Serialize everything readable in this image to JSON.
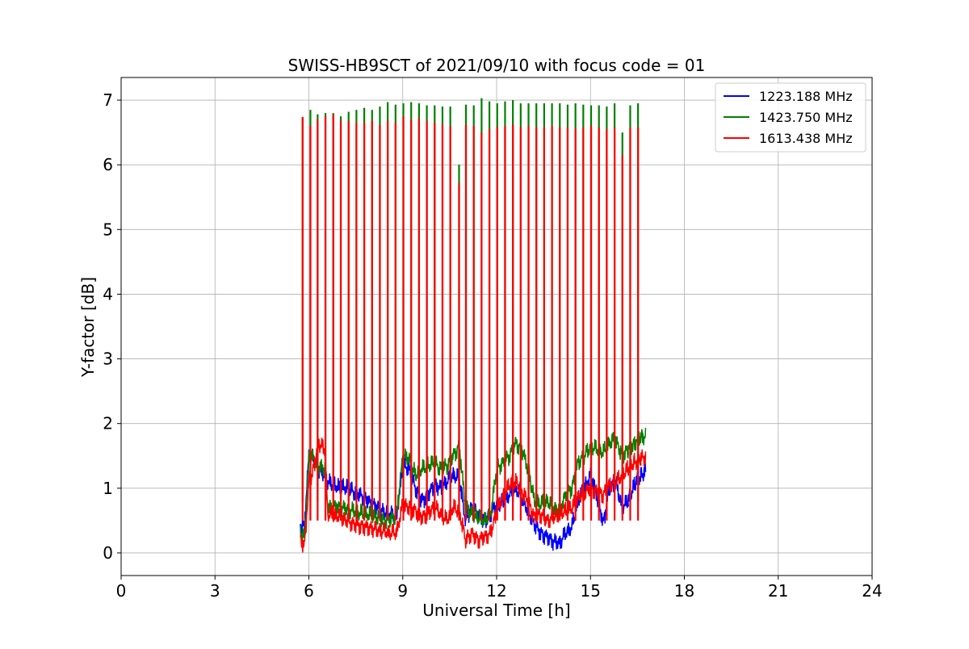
{
  "chart_data": {
    "type": "line",
    "title": "SWISS-HB9SCT of 2021/09/10 with focus code = 01",
    "xlabel": "Universal Time [h]",
    "ylabel": "Y-factor [dB]",
    "xlim": [
      0,
      24
    ],
    "ylim": [
      -0.35,
      7.35
    ],
    "xticks": [
      0,
      3,
      6,
      9,
      12,
      15,
      18,
      21,
      24
    ],
    "xtick_labels": [
      "0",
      "3",
      "6",
      "9",
      "12",
      "15",
      "18",
      "21",
      "24"
    ],
    "yticks": [
      0,
      1,
      2,
      3,
      4,
      5,
      6,
      7
    ],
    "ytick_labels": [
      "0",
      "1",
      "2",
      "3",
      "4",
      "5",
      "6",
      "7"
    ],
    "grid": true,
    "legend_position": "top-right",
    "series": [
      {
        "name": "1223.188 MHz",
        "color": "#0000ff",
        "x": [
          5.73,
          5.85,
          6.0,
          6.1,
          6.3,
          6.5,
          6.6,
          6.8,
          7.0,
          7.2,
          7.4,
          7.6,
          7.8,
          8.0,
          8.2,
          8.4,
          8.6,
          8.8,
          9.0,
          9.2,
          9.4,
          9.6,
          9.8,
          10.0,
          10.2,
          10.4,
          10.6,
          10.8,
          11.0,
          11.2,
          11.4,
          11.6,
          11.8,
          12.0,
          12.2,
          12.4,
          12.6,
          12.8,
          13.0,
          13.2,
          13.4,
          13.6,
          13.8,
          14.0,
          14.2,
          14.4,
          14.6,
          14.8,
          15.0,
          15.2,
          15.4,
          15.6,
          15.8,
          16.0,
          16.2,
          16.4,
          16.6,
          16.75
        ],
        "y": [
          0.45,
          0.4,
          1.55,
          1.5,
          1.3,
          1.2,
          1.1,
          1.05,
          1.0,
          1.02,
          0.95,
          0.9,
          0.85,
          0.75,
          0.7,
          0.62,
          0.6,
          0.58,
          1.35,
          1.3,
          1.0,
          0.8,
          0.9,
          1.05,
          1.0,
          1.1,
          1.2,
          1.15,
          0.5,
          0.7,
          0.6,
          0.5,
          0.6,
          0.75,
          0.8,
          0.9,
          1.0,
          0.85,
          0.65,
          0.45,
          0.3,
          0.25,
          0.18,
          0.15,
          0.3,
          0.4,
          0.8,
          1.0,
          1.2,
          0.9,
          0.45,
          1.0,
          1.1,
          0.7,
          0.8,
          1.05,
          1.2,
          1.25
        ]
      },
      {
        "name": "1423.750 MHz",
        "color": "#008000",
        "x": [
          5.73,
          5.85,
          6.0,
          6.1,
          6.3,
          6.5,
          6.6,
          6.8,
          7.0,
          7.2,
          7.4,
          7.6,
          7.8,
          8.0,
          8.2,
          8.4,
          8.6,
          8.8,
          9.0,
          9.2,
          9.4,
          9.6,
          9.8,
          10.0,
          10.2,
          10.4,
          10.6,
          10.8,
          11.0,
          11.2,
          11.4,
          11.6,
          11.8,
          12.0,
          12.2,
          12.4,
          12.6,
          12.8,
          13.0,
          13.2,
          13.4,
          13.6,
          13.8,
          14.0,
          14.2,
          14.4,
          14.6,
          14.8,
          15.0,
          15.2,
          15.4,
          15.6,
          15.8,
          16.0,
          16.2,
          16.4,
          16.6,
          16.75
        ],
        "y": [
          0.3,
          0.28,
          1.45,
          1.5,
          1.35,
          1.3,
          0.7,
          0.72,
          0.7,
          0.68,
          0.65,
          0.62,
          0.6,
          0.58,
          0.55,
          0.5,
          0.52,
          0.6,
          1.5,
          1.45,
          1.2,
          1.3,
          1.35,
          1.4,
          1.3,
          1.35,
          1.5,
          1.65,
          0.7,
          0.6,
          0.55,
          0.5,
          0.6,
          1.3,
          1.4,
          1.5,
          1.7,
          1.6,
          1.3,
          0.8,
          0.75,
          0.8,
          0.7,
          0.65,
          0.9,
          1.0,
          1.4,
          1.5,
          1.65,
          1.6,
          1.55,
          1.7,
          1.75,
          1.5,
          1.6,
          1.7,
          1.8,
          1.8
        ]
      },
      {
        "name": "1613.438 MHz",
        "color": "#ff0000",
        "x": [
          5.73,
          5.85,
          6.0,
          6.1,
          6.3,
          6.5,
          6.6,
          6.8,
          7.0,
          7.2,
          7.4,
          7.6,
          7.8,
          8.0,
          8.2,
          8.4,
          8.6,
          8.8,
          9.0,
          9.2,
          9.4,
          9.6,
          9.8,
          10.0,
          10.2,
          10.4,
          10.6,
          10.8,
          11.0,
          11.2,
          11.4,
          11.6,
          11.8,
          12.0,
          12.2,
          12.4,
          12.6,
          12.8,
          13.0,
          13.2,
          13.4,
          13.6,
          13.8,
          14.0,
          14.2,
          14.4,
          14.6,
          14.8,
          15.0,
          15.2,
          15.4,
          15.6,
          15.8,
          16.0,
          16.2,
          16.4,
          16.6,
          16.75
        ],
        "y": [
          0.2,
          0.1,
          1.15,
          1.2,
          1.7,
          1.6,
          0.6,
          0.58,
          0.55,
          0.5,
          0.45,
          0.42,
          0.4,
          0.38,
          0.35,
          0.33,
          0.3,
          0.32,
          0.75,
          0.7,
          0.65,
          0.55,
          0.6,
          0.72,
          0.6,
          0.5,
          0.7,
          0.65,
          0.2,
          0.3,
          0.2,
          0.25,
          0.3,
          0.65,
          0.85,
          1.05,
          1.1,
          0.95,
          0.8,
          0.55,
          0.6,
          0.5,
          0.55,
          0.6,
          0.65,
          0.7,
          0.85,
          0.95,
          1.0,
          0.95,
          0.9,
          1.05,
          1.1,
          1.2,
          1.3,
          1.4,
          1.45,
          1.5
        ]
      }
    ],
    "calibration_spikes": {
      "x": [
        5.8,
        6.05,
        6.28,
        6.53,
        6.78,
        7.02,
        7.27,
        7.52,
        7.77,
        8.02,
        8.27,
        8.52,
        8.77,
        9.02,
        9.27,
        9.52,
        9.77,
        10.02,
        10.27,
        10.52,
        10.8,
        11.02,
        11.27,
        11.52,
        11.77,
        12.02,
        12.27,
        12.52,
        12.77,
        13.02,
        13.27,
        13.52,
        13.77,
        14.02,
        14.27,
        14.52,
        14.77,
        15.02,
        15.27,
        15.52,
        15.77,
        16.02,
        16.27,
        16.52
      ],
      "green_peak": [
        6.72,
        6.85,
        6.78,
        6.8,
        6.8,
        6.75,
        6.82,
        6.85,
        6.88,
        6.85,
        6.9,
        6.97,
        6.93,
        6.95,
        6.97,
        6.95,
        6.92,
        6.92,
        6.9,
        6.9,
        6.0,
        6.93,
        6.92,
        7.03,
        6.98,
        6.95,
        6.98,
        7.0,
        6.95,
        6.95,
        6.95,
        6.95,
        6.95,
        6.95,
        6.93,
        6.95,
        6.93,
        6.92,
        6.92,
        6.9,
        6.95,
        6.5,
        6.92,
        6.95
      ],
      "red_peak": [
        6.74,
        6.6,
        6.7,
        6.75,
        6.78,
        6.68,
        6.68,
        6.65,
        6.65,
        6.68,
        6.62,
        6.68,
        6.65,
        6.75,
        6.7,
        6.72,
        6.68,
        6.65,
        6.62,
        6.6,
        5.72,
        6.62,
        6.6,
        6.5,
        6.55,
        6.58,
        6.6,
        6.62,
        6.58,
        6.6,
        6.58,
        6.58,
        6.6,
        6.58,
        6.58,
        6.56,
        6.58,
        6.6,
        6.58,
        6.55,
        6.58,
        6.15,
        6.58,
        6.58
      ]
    }
  }
}
